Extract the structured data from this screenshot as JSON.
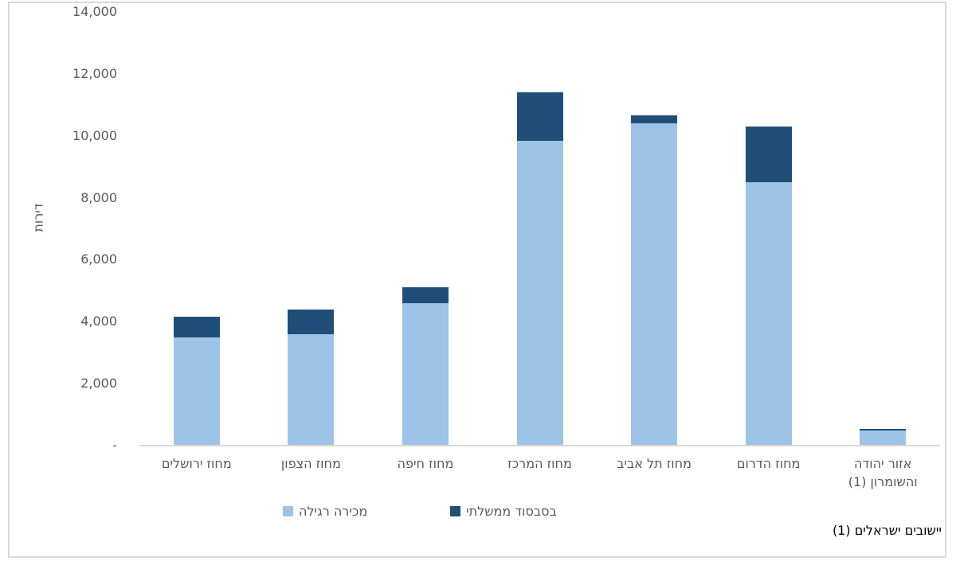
{
  "frame": {
    "background_color": "#FFFFFF",
    "border_color": "#D9D9D9"
  },
  "colors": {
    "regular_sale": "#9DC3E6",
    "government_subsidized": "#1F4E79",
    "axis_text": "#595959",
    "axis_line": "#D9D9D9",
    "footnote_text": "#000000"
  },
  "chart_data": {
    "type": "bar",
    "stacked": true,
    "rtl": true,
    "grid": false,
    "title": "",
    "xlabel": "",
    "ylabel": "דירות",
    "ylim": [
      0,
      14000
    ],
    "ytick_step": 2000,
    "ytick_labels": [
      "-",
      "2,000",
      "4,000",
      "6,000",
      "8,000",
      "10,000",
      "12,000",
      "14,000"
    ],
    "categories": [
      "מחוז ירושלים",
      "מחוז הצפון",
      "מחוז חיפה",
      "מחוז המרכז",
      "מחוז תל אביב",
      "מחוז הדרום",
      "אזור יהודה והשומרון (1)"
    ],
    "series": [
      {
        "name": "מכירה רגילה",
        "color": "#9DC3E6",
        "values": [
          3500,
          3600,
          4600,
          9850,
          10400,
          8500,
          500
        ]
      },
      {
        "name": "בסבסוד ממשלתי",
        "color": "#1F4E79",
        "values": [
          650,
          800,
          500,
          1550,
          250,
          1800,
          50
        ]
      }
    ],
    "legend_position": "bottom"
  },
  "legend": [
    {
      "label": "מכירה רגילה",
      "color": "#9DC3E6"
    },
    {
      "label": "בסבסוד ממשלתי",
      "color": "#1F4E79"
    }
  ],
  "footnote": {
    "text": "(1) יישובים ישראלים"
  }
}
